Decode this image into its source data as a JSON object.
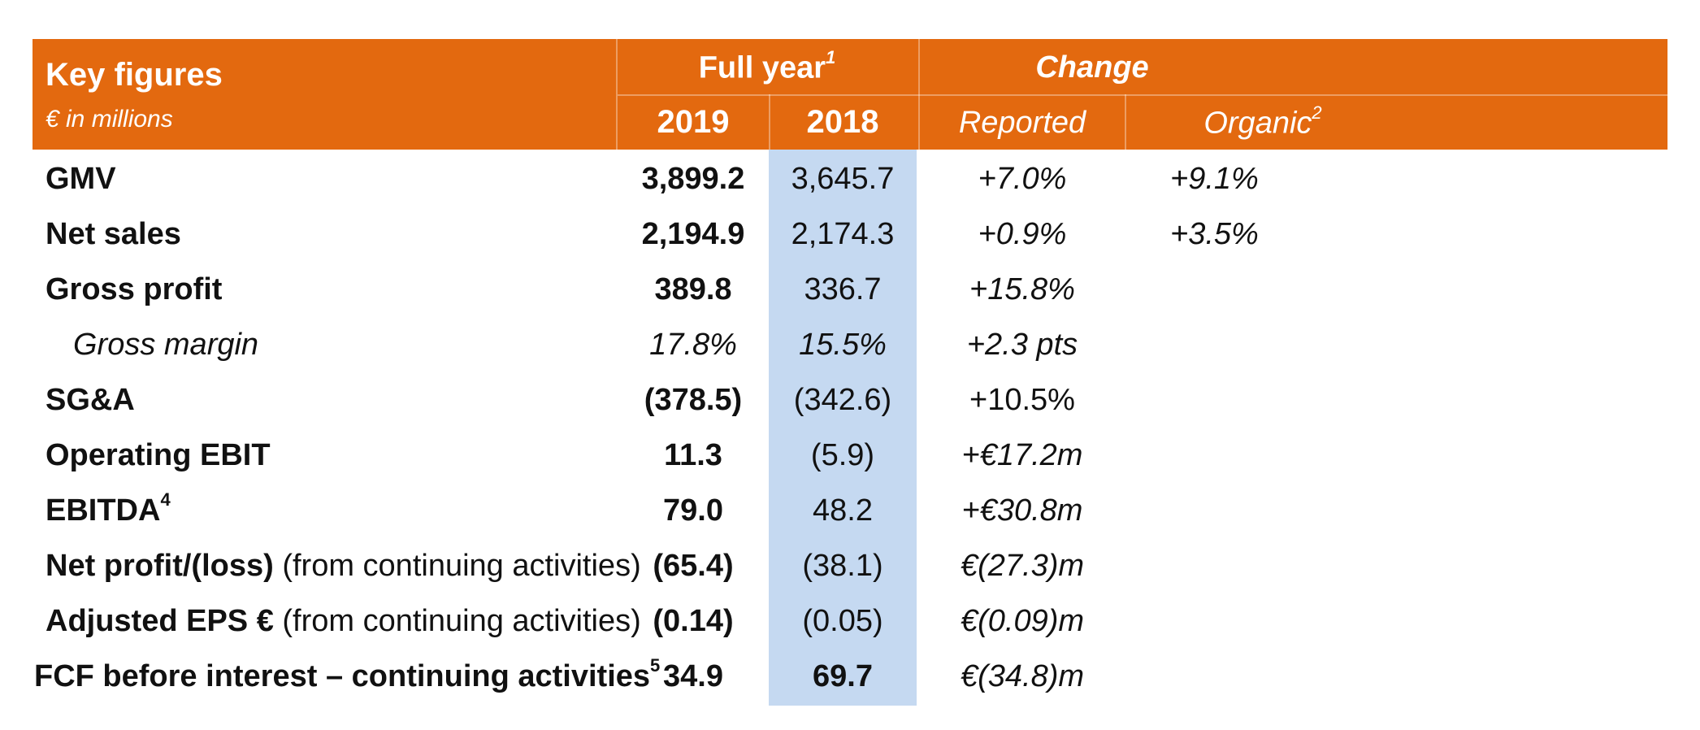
{
  "header": {
    "title": "Key figures",
    "unit": "€ in millions",
    "full_year_label": "Full year",
    "full_year_sup": "1",
    "change_label": "Change",
    "col_2019": "2019",
    "col_2018": "2018",
    "col_reported": "Reported",
    "col_organic": "Organic",
    "col_organic_sup": "2"
  },
  "rows": [
    {
      "label": "GMV",
      "label_suffix": "",
      "sup": "",
      "v2019": "3,899.2",
      "v2018": "3,645.7",
      "reported": "+7.0%",
      "organic": "+9.1%"
    },
    {
      "label": "Net sales",
      "label_suffix": "",
      "sup": "",
      "v2019": "2,194.9",
      "v2018": "2,174.3",
      "reported": "+0.9%",
      "organic": "+3.5%"
    },
    {
      "label": "Gross profit",
      "label_suffix": "",
      "sup": "",
      "v2019": "389.8",
      "v2018": "336.7",
      "reported": "+15.8%",
      "organic": ""
    },
    {
      "label": "Gross margin",
      "label_suffix": "",
      "sup": "",
      "v2019": "17.8%",
      "v2018": "15.5%",
      "reported": "+2.3 pts",
      "organic": ""
    },
    {
      "label": "SG&A",
      "label_suffix": "",
      "sup": "",
      "v2019": "(378.5)",
      "v2018": "(342.6)",
      "reported": "+10.5%",
      "organic": ""
    },
    {
      "label": "Operating EBIT",
      "label_suffix": "",
      "sup": "",
      "v2019": "11.3",
      "v2018": "(5.9)",
      "reported": "+€17.2m",
      "organic": ""
    },
    {
      "label": "EBITDA",
      "label_suffix": "",
      "sup": "4",
      "v2019": "79.0",
      "v2018": "48.2",
      "reported": "+€30.8m",
      "organic": ""
    },
    {
      "label": "Net profit/(loss)",
      "label_suffix": " (from continuing activities)",
      "sup": "",
      "v2019": "(65.4)",
      "v2018": "(38.1)",
      "reported": "€(27.3)m",
      "organic": ""
    },
    {
      "label": "Adjusted EPS €",
      "label_suffix": " (from continuing activities)",
      "sup": "",
      "v2019": "(0.14)",
      "v2018": "(0.05)",
      "reported": "€(0.09)m",
      "organic": ""
    },
    {
      "label": "FCF before interest – continuing activities",
      "label_suffix": "",
      "sup": "5",
      "v2019": "34.9",
      "v2018": "69.7",
      "reported": "€(34.8)m",
      "organic": ""
    }
  ],
  "colors": {
    "header_bg": "#e3690f",
    "highlight_col": "#c5d9f1"
  }
}
